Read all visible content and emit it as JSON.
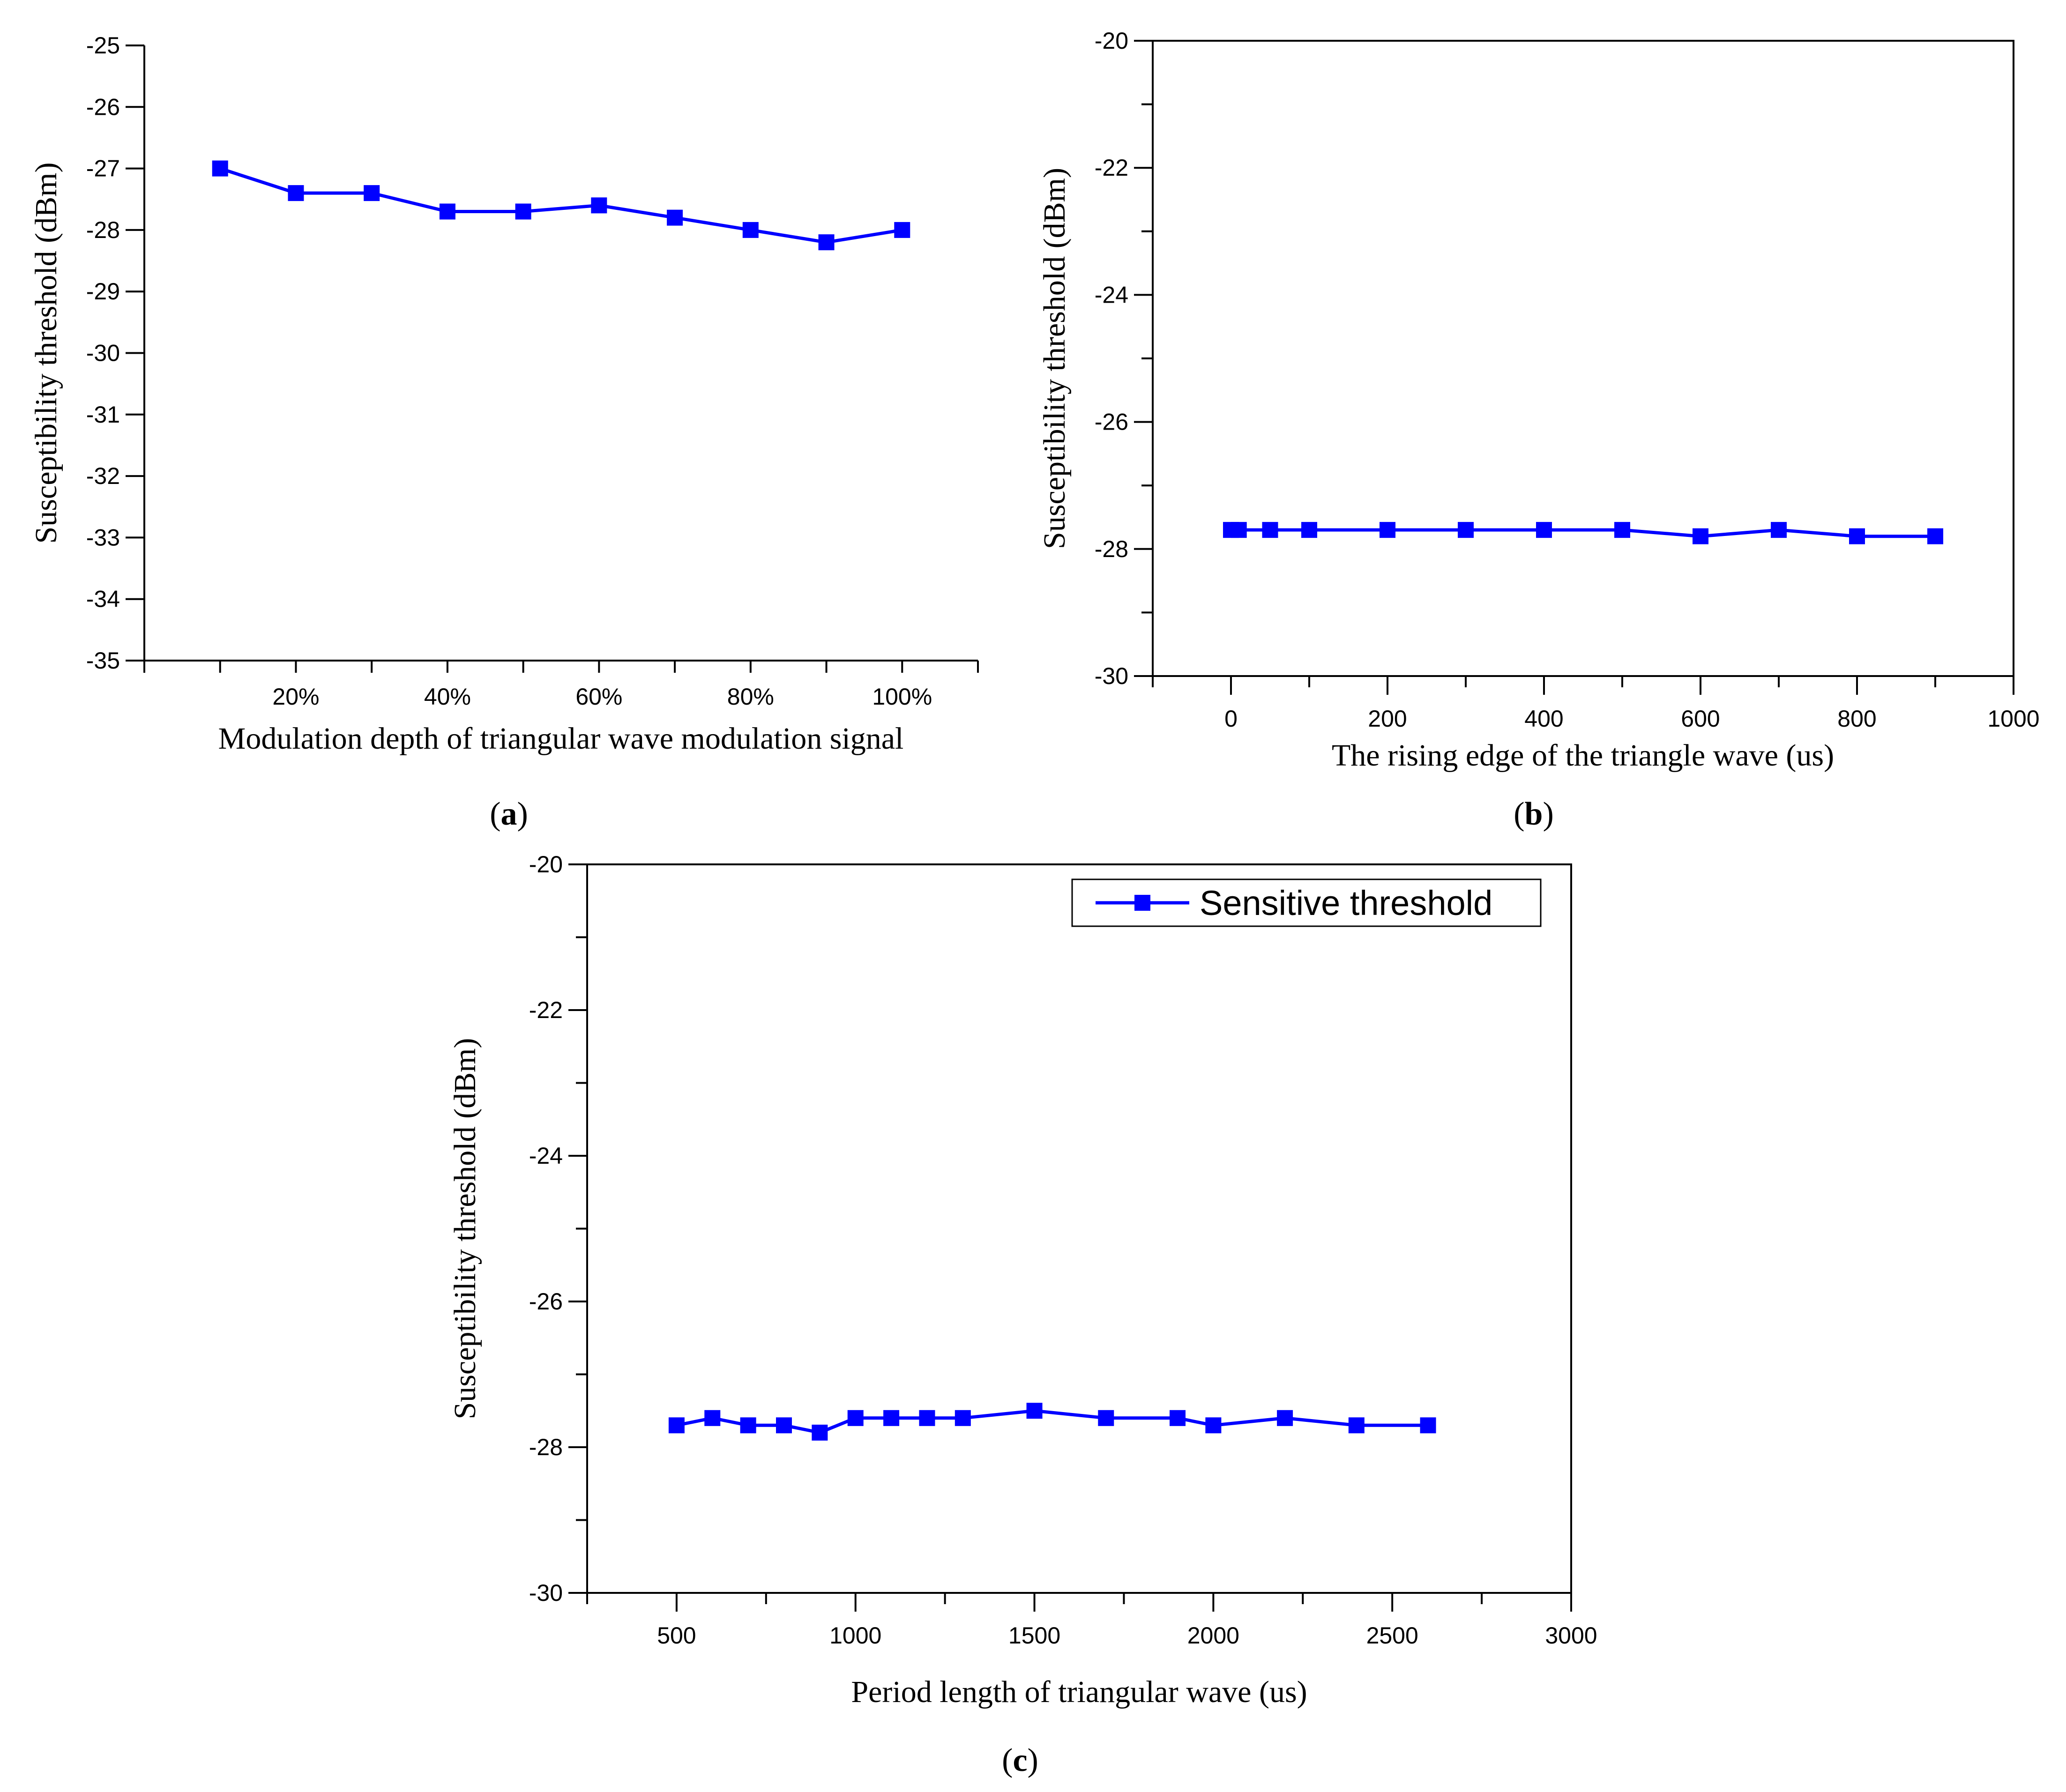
{
  "colors": {
    "series": "#0000ff",
    "axis": "#000000",
    "background": "#ffffff"
  },
  "chart_data": [
    {
      "panel": "a",
      "type": "line",
      "xlabel": "Modulation depth of triangular wave modulation signal",
      "ylabel": "Susceptibility threshold  (dBm)",
      "xlim": [
        0,
        110
      ],
      "ylim": [
        -35,
        -25
      ],
      "yticks": [
        -35,
        -34,
        -33,
        -32,
        -31,
        -30,
        -29,
        -28,
        -27,
        -26,
        -25
      ],
      "ytick_labels": [
        "-35",
        "-34",
        "-33",
        "-32",
        "-31",
        "-30",
        "-29",
        "-28",
        "-27",
        "-26",
        "-25"
      ],
      "xticks": [
        20,
        40,
        60,
        80,
        100
      ],
      "xtick_labels": [
        "20%",
        "40%",
        "60%",
        "80%",
        "100%"
      ],
      "x_minor_ticks": [
        0,
        10,
        30,
        50,
        70,
        90,
        110
      ],
      "series": [
        {
          "name": "Sensitive threshold",
          "x": [
            10,
            20,
            30,
            40,
            50,
            60,
            70,
            80,
            90,
            100
          ],
          "y": [
            -27.0,
            -27.4,
            -27.4,
            -27.7,
            -27.7,
            -27.6,
            -27.8,
            -28.0,
            -28.2,
            -28.0
          ]
        }
      ],
      "legend": null
    },
    {
      "panel": "b",
      "type": "line",
      "xlabel": "The rising edge of the triangle wave (us)",
      "ylabel": "Susceptibility threshold  (dBm)",
      "xlim": [
        -100,
        1000
      ],
      "ylim": [
        -30,
        -20
      ],
      "yticks": [
        -30,
        -28,
        -26,
        -24,
        -22,
        -20
      ],
      "ytick_labels": [
        "-30",
        "-28",
        "-26",
        "-24",
        "-22",
        "-20"
      ],
      "y_minor_ticks": [
        -29,
        -27,
        -25,
        -23,
        -21
      ],
      "xticks": [
        0,
        200,
        400,
        600,
        800,
        1000
      ],
      "xtick_labels": [
        "0",
        "200",
        "400",
        "600",
        "800",
        "1000"
      ],
      "x_minor_ticks": [
        -100,
        100,
        300,
        500,
        700,
        900
      ],
      "series": [
        {
          "name": "Sensitive threshold",
          "x": [
            0,
            10,
            50,
            100,
            200,
            300,
            400,
            500,
            600,
            700,
            800,
            900
          ],
          "y": [
            -27.7,
            -27.7,
            -27.7,
            -27.7,
            -27.7,
            -27.7,
            -27.7,
            -27.7,
            -27.8,
            -27.7,
            -27.8,
            -27.8
          ]
        }
      ],
      "legend": null
    },
    {
      "panel": "c",
      "type": "line",
      "xlabel": "Period length of triangular wave (us)",
      "ylabel": "Susceptibility threshold  (dBm)",
      "xlim": [
        250,
        3000
      ],
      "ylim": [
        -30,
        -20
      ],
      "yticks": [
        -30,
        -28,
        -26,
        -24,
        -22,
        -20
      ],
      "ytick_labels": [
        "-30",
        "-28",
        "-26",
        "-24",
        "-22",
        "-20"
      ],
      "y_minor_ticks": [
        -29,
        -27,
        -25,
        -23,
        -21
      ],
      "xticks": [
        500,
        1000,
        1500,
        2000,
        2500,
        3000
      ],
      "xtick_labels": [
        "500",
        "1000",
        "1500",
        "2000",
        "2500",
        "3000"
      ],
      "x_minor_ticks": [
        250,
        750,
        1250,
        1750,
        2250,
        2750
      ],
      "series": [
        {
          "name": "Sensitive threshold",
          "x": [
            500,
            600,
            700,
            800,
            900,
            1000,
            1100,
            1200,
            1300,
            1500,
            1700,
            1900,
            2000,
            2200,
            2400,
            2600
          ],
          "y": [
            -27.7,
            -27.6,
            -27.7,
            -27.7,
            -27.8,
            -27.6,
            -27.6,
            -27.6,
            -27.6,
            -27.5,
            -27.6,
            -27.6,
            -27.7,
            -27.6,
            -27.7,
            -27.7
          ]
        }
      ],
      "legend": {
        "label": "Sensitive threshold",
        "position": "top-right"
      }
    }
  ],
  "captions": {
    "a": {
      "open": "(",
      "letter": "a",
      "close": ")"
    },
    "b": {
      "open": "(",
      "letter": "b",
      "close": ")"
    },
    "c": {
      "open": "(",
      "letter": "c",
      "close": ")"
    }
  }
}
